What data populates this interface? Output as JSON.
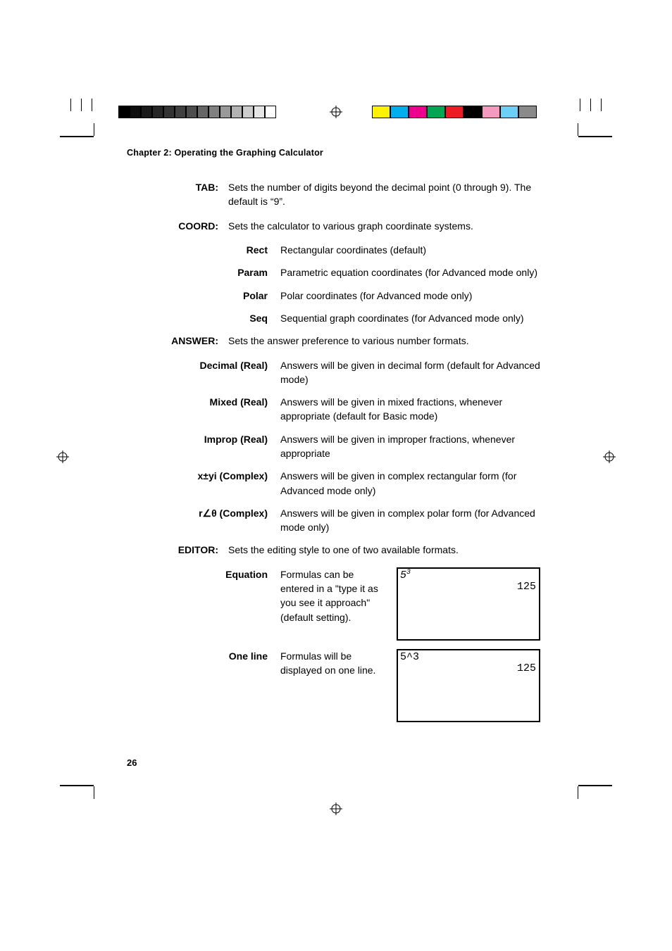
{
  "registration_color_bars_left": [
    "#000000",
    "#0d0d0d",
    "#1a1a1a",
    "#262626",
    "#333333",
    "#404040",
    "#4d4d4d",
    "#666666",
    "#808080",
    "#999999",
    "#b3b3b3",
    "#cccccc",
    "#e5e5e5",
    "#ffffff"
  ],
  "registration_color_bars_right": [
    "#fff200",
    "#00aeef",
    "#ec008c",
    "#00a651",
    "#ed1c24",
    "#000000",
    "#f49ac1",
    "#6dcff6",
    "#8a8a8a"
  ],
  "short_bars_top_left": [
    "#000000",
    "#666666",
    "#b3b3b3"
  ],
  "short_bars_top_right": [
    "#000000",
    "#666666",
    "#b3b3b3"
  ],
  "chapter": "Chapter 2: Operating the Graphing Calculator",
  "sections": {
    "tab": {
      "label": "TAB:",
      "desc": "Sets the number of digits beyond the decimal point (0 through 9). The default is “9”."
    },
    "coord": {
      "label": "COORD:",
      "desc": "Sets the calculator to various graph coordinate systems."
    },
    "coord_items": [
      {
        "label": "Rect",
        "desc": "Rectangular coordinates (default)"
      },
      {
        "label": "Param",
        "desc": "Parametric equation coordinates (for Advanced mode only)"
      },
      {
        "label": "Polar",
        "desc": "Polar coordinates (for Advanced mode only)"
      },
      {
        "label": "Seq",
        "desc": "Sequential graph coordinates (for Advanced  mode only)"
      }
    ],
    "answer": {
      "label": "ANSWER:",
      "desc": "Sets the answer preference to various number formats."
    },
    "answer_items": [
      {
        "label": "Decimal (Real)",
        "desc": "Answers will be given in decimal form (default for Advanced mode)"
      },
      {
        "label": "Mixed (Real)",
        "desc": "Answers will be given in mixed fractions, whenever appropriate (default for Basic mode)"
      },
      {
        "label": "Improp (Real)",
        "desc": "Answers will be given in improper fractions, whenever appropriate"
      },
      {
        "label": "x±yi (Complex)",
        "desc": "Answers will be given in complex rectangular form (for Advanced mode only)"
      },
      {
        "label": "r∠θ (Complex)",
        "desc": "Answers will be given in complex polar form (for Advanced mode only)"
      }
    ],
    "editor": {
      "label": "EDITOR:",
      "desc": "Sets the editing style to one of two available formats."
    },
    "editor_items": [
      {
        "label": "Equation",
        "desc": "Formulas can be entered in a \"type it as you see it approach\" (default setting).",
        "lcd_in_base": "5",
        "lcd_in_sup": "3",
        "lcd_in_plain": "",
        "lcd_out": "125"
      },
      {
        "label": "One line",
        "desc": "Formulas will be displayed on one line.",
        "lcd_in_base": "",
        "lcd_in_sup": "",
        "lcd_in_plain": "5^3",
        "lcd_out": "125"
      }
    ]
  },
  "page_number": "26"
}
